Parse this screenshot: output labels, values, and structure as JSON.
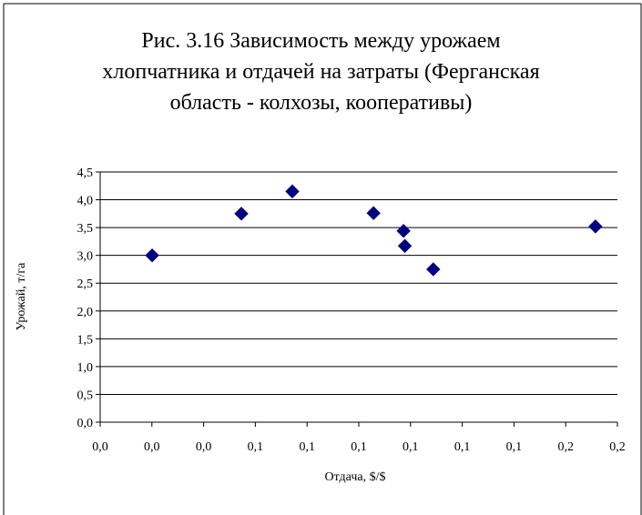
{
  "chart_data": {
    "type": "scatter",
    "title": "Рис. 3.16    Зависимость между урожаем\nхлопчатника и отдачей на затраты (Ферганская\nобласть - колхозы, кооперативы)",
    "xlabel": "Отдача, $/$",
    "ylabel": "Урожай, т/га",
    "xlim": [
      0,
      0.2
    ],
    "ylim": [
      0,
      4.5
    ],
    "x_tick_labels": [
      "0,0",
      "0,0",
      "0,0",
      "0,1",
      "0,1",
      "0,1",
      "0,1",
      "0,1",
      "0,1",
      "0,2",
      "0,2"
    ],
    "y_tick_labels": [
      "0,0",
      "0,5",
      "1,0",
      "1,5",
      "2,0",
      "2,5",
      "3,0",
      "3,5",
      "4,0",
      "4,5"
    ],
    "grid": "horizontal",
    "legend": "none",
    "marker": "diamond",
    "marker_color": "#000080",
    "points": [
      {
        "x": 0.0201,
        "y": 3.0
      },
      {
        "x": 0.0546,
        "y": 3.75
      },
      {
        "x": 0.0743,
        "y": 4.15
      },
      {
        "x": 0.1057,
        "y": 3.76
      },
      {
        "x": 0.1173,
        "y": 3.44
      },
      {
        "x": 0.1178,
        "y": 3.17
      },
      {
        "x": 0.1288,
        "y": 2.75
      },
      {
        "x": 0.1915,
        "y": 3.52
      }
    ]
  }
}
